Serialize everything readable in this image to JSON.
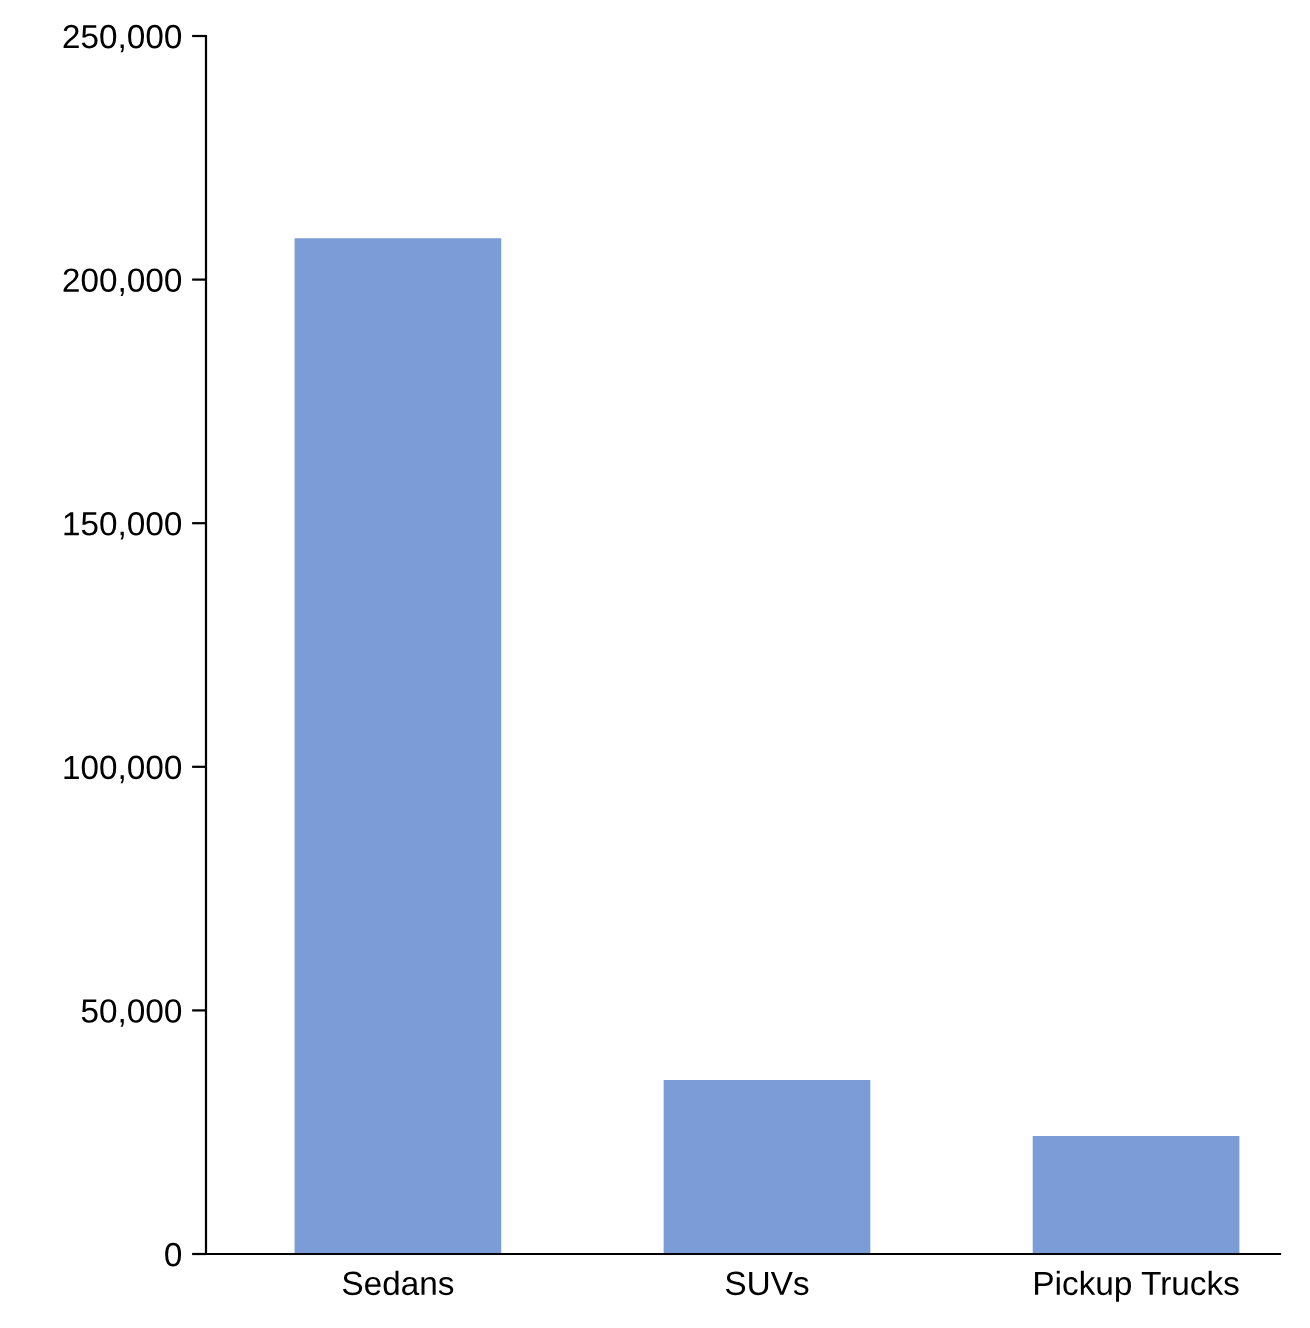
{
  "chart_data": {
    "type": "bar",
    "categories": [
      "Sedans",
      "SUVs",
      "Pickup Trucks"
    ],
    "values": [
      208500,
      35700,
      24200
    ],
    "color": "#7b9cd6",
    "ylim": [
      0,
      250000
    ],
    "yticks": [
      {
        "value": 0,
        "label": "0"
      },
      {
        "value": 50000,
        "label": "50,000"
      },
      {
        "value": 100000,
        "label": "100,000"
      },
      {
        "value": 150000,
        "label": "150,000"
      },
      {
        "value": 200000,
        "label": "200,000"
      },
      {
        "value": 250000,
        "label": "250,000"
      }
    ],
    "grid": false,
    "legend": false
  }
}
